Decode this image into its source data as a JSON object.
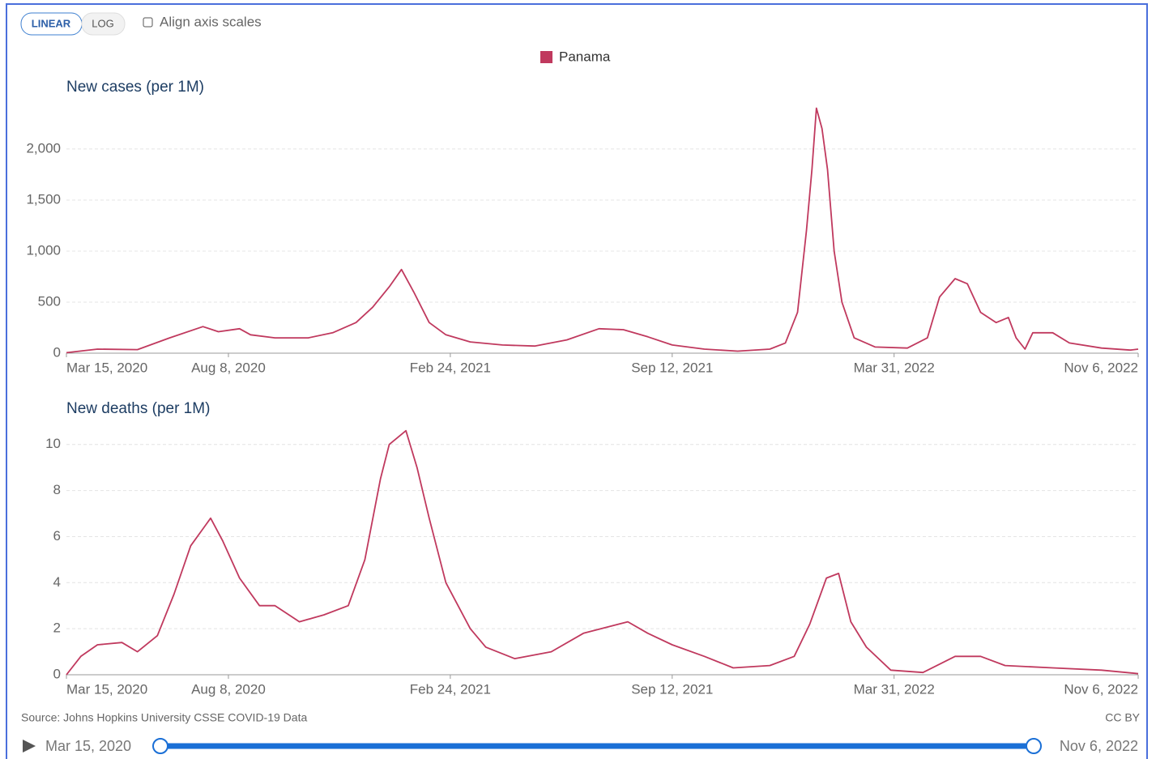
{
  "controls": {
    "linear": "LINEAR",
    "log": "LOG",
    "align": "Align axis scales"
  },
  "chart_data": [
    {
      "type": "line",
      "title": "New cases (per 1M)",
      "xlim": [
        "2020-03-15",
        "2022-11-06"
      ],
      "xticks": [
        {
          "value": "2020-03-15",
          "label": "Mar 15, 2020"
        },
        {
          "value": "2020-08-08",
          "label": "Aug 8, 2020"
        },
        {
          "value": "2021-02-24",
          "label": "Feb 24, 2021"
        },
        {
          "value": "2021-09-12",
          "label": "Sep 12, 2021"
        },
        {
          "value": "2022-03-31",
          "label": "Mar 31, 2022"
        },
        {
          "value": "2022-11-06",
          "label": "Nov 6, 2022"
        }
      ],
      "ylim": [
        0,
        2420
      ],
      "yticks": [
        0,
        500,
        {
          "value": 1000,
          "label": "1,000"
        },
        {
          "value": 1500,
          "label": "1,500"
        },
        {
          "value": 2000,
          "label": "2,000"
        }
      ],
      "grid": true,
      "x": [
        "2020-03-15",
        "2020-04-12",
        "2020-05-18",
        "2020-06-16",
        "2020-07-16",
        "2020-07-30",
        "2020-08-18",
        "2020-08-28",
        "2020-09-19",
        "2020-10-19",
        "2020-11-10",
        "2020-12-01",
        "2020-12-16",
        "2020-12-31",
        "2021-01-11",
        "2021-01-22",
        "2021-02-05",
        "2021-02-20",
        "2021-03-14",
        "2021-04-12",
        "2021-05-11",
        "2021-06-09",
        "2021-07-08",
        "2021-07-30",
        "2021-08-21",
        "2021-09-12",
        "2021-10-11",
        "2021-11-10",
        "2021-12-09",
        "2021-12-23",
        "2022-01-03",
        "2022-01-11",
        "2022-01-16",
        "2022-01-20",
        "2022-01-25",
        "2022-01-30",
        "2022-02-05",
        "2022-02-12",
        "2022-02-23",
        "2022-03-14",
        "2022-04-12",
        "2022-04-30",
        "2022-05-11",
        "2022-05-25",
        "2022-06-05",
        "2022-06-17",
        "2022-07-01",
        "2022-07-12",
        "2022-07-19",
        "2022-07-27",
        "2022-08-03",
        "2022-08-21",
        "2022-09-05",
        "2022-10-04",
        "2022-10-30",
        "2022-11-06"
      ],
      "series": [
        {
          "name": "Panama",
          "color": "#c0395e",
          "values": [
            5,
            40,
            35,
            150,
            260,
            210,
            240,
            180,
            150,
            150,
            200,
            300,
            450,
            650,
            820,
            600,
            300,
            180,
            110,
            80,
            70,
            130,
            240,
            230,
            160,
            80,
            40,
            20,
            40,
            100,
            400,
            1200,
            1800,
            2400,
            2200,
            1800,
            1000,
            500,
            150,
            60,
            50,
            150,
            550,
            730,
            680,
            400,
            300,
            350,
            150,
            40,
            200,
            200,
            100,
            50,
            30,
            40
          ]
        }
      ]
    },
    {
      "type": "line",
      "title": "New deaths (per 1M)",
      "xlim": [
        "2020-03-15",
        "2022-11-06"
      ],
      "xticks": [
        {
          "value": "2020-03-15",
          "label": "Mar 15, 2020"
        },
        {
          "value": "2020-08-08",
          "label": "Aug 8, 2020"
        },
        {
          "value": "2021-02-24",
          "label": "Feb 24, 2021"
        },
        {
          "value": "2021-09-12",
          "label": "Sep 12, 2021"
        },
        {
          "value": "2022-03-31",
          "label": "Mar 31, 2022"
        },
        {
          "value": "2022-11-06",
          "label": "Nov 6, 2022"
        }
      ],
      "ylim": [
        0,
        10.8
      ],
      "yticks": [
        0,
        2,
        4,
        6,
        8,
        10
      ],
      "grid": true,
      "x": [
        "2020-03-15",
        "2020-03-28",
        "2020-04-12",
        "2020-05-04",
        "2020-05-18",
        "2020-06-05",
        "2020-06-20",
        "2020-07-05",
        "2020-07-23",
        "2020-08-03",
        "2020-08-18",
        "2020-09-05",
        "2020-09-19",
        "2020-10-11",
        "2020-11-02",
        "2020-11-24",
        "2020-12-09",
        "2020-12-23",
        "2020-12-31",
        "2021-01-15",
        "2021-01-25",
        "2021-02-05",
        "2021-02-20",
        "2021-03-14",
        "2021-03-28",
        "2021-04-23",
        "2021-05-26",
        "2021-06-24",
        "2021-08-03",
        "2021-08-21",
        "2021-09-12",
        "2021-10-11",
        "2021-11-06",
        "2021-12-09",
        "2021-12-31",
        "2022-01-14",
        "2022-01-29",
        "2022-02-09",
        "2022-02-20",
        "2022-03-06",
        "2022-03-28",
        "2022-04-26",
        "2022-05-25",
        "2022-06-17",
        "2022-07-09",
        "2022-08-21",
        "2022-10-04",
        "2022-11-06"
      ],
      "series": [
        {
          "name": "Panama",
          "color": "#c0395e",
          "values": [
            0,
            0.8,
            1.3,
            1.4,
            1.0,
            1.7,
            3.5,
            5.6,
            6.8,
            5.8,
            4.2,
            3.0,
            3.0,
            2.3,
            2.6,
            3.0,
            5.0,
            8.5,
            10.0,
            10.6,
            9.0,
            6.8,
            4.0,
            2.0,
            1.2,
            0.7,
            1.0,
            1.8,
            2.3,
            1.8,
            1.3,
            0.8,
            0.3,
            0.4,
            0.8,
            2.2,
            4.2,
            4.4,
            2.3,
            1.2,
            0.2,
            0.1,
            0.8,
            0.8,
            0.4,
            0.3,
            0.2,
            0.05
          ]
        }
      ]
    }
  ],
  "footer": {
    "source": "Source: Johns Hopkins University CSSE COVID-19 Data",
    "license": "CC BY"
  },
  "timeline": {
    "start": "Mar 15, 2020",
    "end": "Nov 6, 2022"
  }
}
